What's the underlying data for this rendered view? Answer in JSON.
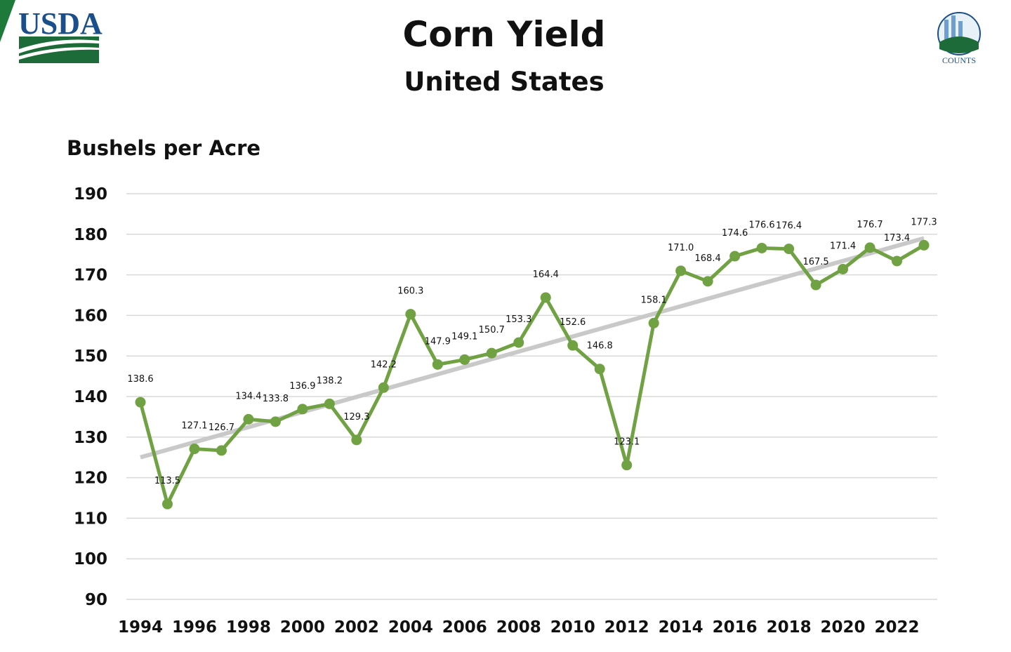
{
  "header": {
    "logo_left": "USDA",
    "logo_right": "AGRICULTURE COUNTS"
  },
  "chart_data": {
    "type": "line",
    "title": "Corn Yield",
    "subtitle": "United States",
    "ylabel": "Bushels per Acre",
    "xlabel": "",
    "ylim": [
      90,
      190
    ],
    "yticks": [
      90,
      100,
      110,
      120,
      130,
      140,
      150,
      160,
      170,
      180,
      190
    ],
    "xticks": [
      1994,
      1996,
      1998,
      2000,
      2002,
      2004,
      2006,
      2008,
      2010,
      2012,
      2014,
      2016,
      2018,
      2020,
      2022
    ],
    "grid": true,
    "trendline": "linear",
    "colors": {
      "series": "#70a142",
      "trend": "#c9c9c9",
      "grid": "#d9d9d9"
    },
    "x": [
      1994,
      1995,
      1996,
      1997,
      1998,
      1999,
      2000,
      2001,
      2002,
      2003,
      2004,
      2005,
      2006,
      2007,
      2008,
      2009,
      2010,
      2011,
      2012,
      2013,
      2014,
      2015,
      2016,
      2017,
      2018,
      2019,
      2020,
      2021,
      2022,
      2023
    ],
    "values": [
      138.6,
      113.5,
      127.1,
      126.7,
      134.4,
      133.8,
      136.9,
      138.2,
      129.3,
      142.2,
      160.3,
      147.9,
      149.1,
      150.7,
      153.3,
      164.4,
      152.6,
      146.8,
      123.1,
      158.1,
      171.0,
      168.4,
      174.6,
      176.6,
      176.4,
      167.5,
      171.4,
      176.7,
      173.4,
      177.3
    ]
  }
}
